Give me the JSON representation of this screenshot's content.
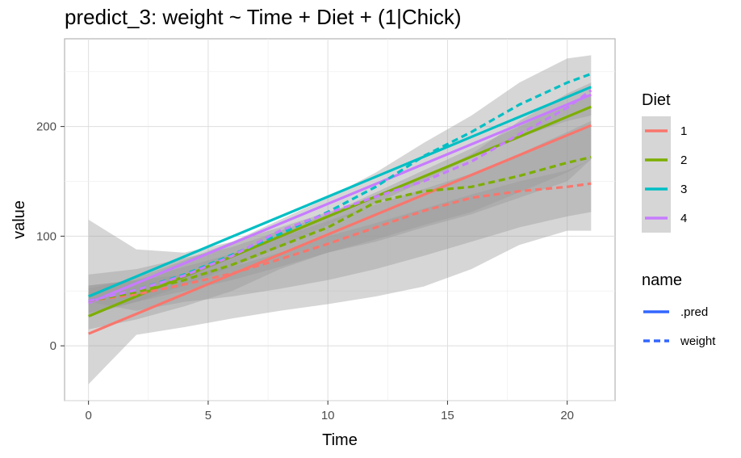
{
  "title": "predict_3: weight ~ Time + Diet + (1|Chick)",
  "chart_data": {
    "type": "line",
    "xlabel": "Time",
    "ylabel": "value",
    "xlim": [
      -1,
      22
    ],
    "ylim": [
      -50,
      280
    ],
    "x_ticks": [
      0,
      5,
      10,
      15,
      20
    ],
    "y_ticks": [
      0,
      100,
      200
    ],
    "grid": true,
    "x": [
      0,
      21
    ],
    "series": [
      {
        "diet": "1",
        "name": ".pred",
        "x": [
          0,
          21
        ],
        "values": [
          11,
          201
        ]
      },
      {
        "diet": "2",
        "name": ".pred",
        "x": [
          0,
          21
        ],
        "values": [
          27,
          218
        ]
      },
      {
        "diet": "3",
        "name": ".pred",
        "x": [
          0,
          21
        ],
        "values": [
          45,
          236
        ]
      },
      {
        "diet": "4",
        "name": ".pred",
        "x": [
          0,
          21
        ],
        "values": [
          39,
          229
        ]
      },
      {
        "diet": "1",
        "name": "weight",
        "x": [
          0,
          2,
          4,
          6,
          8,
          10,
          12,
          14,
          16,
          18,
          20,
          21
        ],
        "values": [
          41,
          47,
          56,
          66,
          79,
          93,
          108,
          123,
          135,
          141,
          145,
          148
        ]
      },
      {
        "diet": "2",
        "name": "weight",
        "x": [
          0,
          2,
          4,
          6,
          8,
          10,
          12,
          14,
          16,
          18,
          20,
          21
        ],
        "values": [
          41,
          49,
          60,
          74,
          91,
          108,
          131,
          141,
          145,
          155,
          167,
          172
        ]
      },
      {
        "diet": "3",
        "name": "weight",
        "x": [
          0,
          2,
          4,
          6,
          8,
          10,
          12,
          14,
          16,
          18,
          20,
          21
        ],
        "values": [
          41,
          51,
          65,
          83,
          102,
          122,
          145,
          173,
          195,
          220,
          240,
          248
        ]
      },
      {
        "diet": "4",
        "name": "weight",
        "x": [
          0,
          2,
          4,
          6,
          8,
          10,
          12,
          14,
          16,
          18,
          20,
          21
        ],
        "values": [
          41,
          51,
          64,
          82,
          105,
          121,
          136,
          150,
          168,
          193,
          217,
          233
        ]
      }
    ],
    "ribbons": [
      {
        "x": [
          0,
          2,
          4,
          6,
          8,
          10,
          12,
          14,
          16,
          18,
          20,
          21
        ],
        "lower": [
          -35,
          10,
          17,
          25,
          32,
          38,
          45,
          54,
          70,
          92,
          105,
          105
        ],
        "upper": [
          115,
          88,
          85,
          95,
          108,
          122,
          135,
          153,
          175,
          205,
          230,
          240
        ]
      },
      {
        "x": [
          0,
          2,
          4,
          6,
          8,
          10,
          12,
          14,
          16,
          18,
          20,
          21
        ],
        "lower": [
          15,
          24,
          36,
          50,
          70,
          85,
          95,
          108,
          120,
          135,
          150,
          170
        ],
        "upper": [
          65,
          70,
          80,
          90,
          105,
          120,
          140,
          160,
          180,
          200,
          220,
          230
        ]
      },
      {
        "x": [
          0,
          2,
          4,
          6,
          8,
          10,
          12,
          14,
          16,
          18,
          20,
          21
        ],
        "lower": [
          28,
          40,
          50,
          60,
          72,
          85,
          97,
          110,
          122,
          140,
          158,
          170
        ],
        "upper": [
          55,
          60,
          72,
          84,
          99,
          114,
          129,
          143,
          157,
          175,
          195,
          205
        ]
      },
      {
        "x": [
          0,
          2,
          4,
          6,
          8,
          10,
          12,
          14,
          16,
          18,
          20,
          21
        ],
        "lower": [
          40,
          32,
          40,
          45,
          52,
          60,
          70,
          82,
          95,
          108,
          118,
          122
        ],
        "upper": [
          55,
          60,
          65,
          72,
          85,
          100,
          112,
          125,
          138,
          150,
          160,
          170
        ]
      },
      {
        "x": [
          0,
          2,
          4,
          6,
          8,
          10,
          12,
          14,
          16,
          18,
          20,
          21
        ],
        "lower": [
          30,
          40,
          55,
          72,
          90,
          110,
          130,
          150,
          172,
          190,
          205,
          210
        ],
        "upper": [
          52,
          62,
          78,
          95,
          115,
          135,
          158,
          185,
          210,
          240,
          262,
          265
        ]
      }
    ],
    "legend_diet": {
      "title": "Diet",
      "items": [
        {
          "label": "1",
          "color": "#F8766D"
        },
        {
          "label": "2",
          "color": "#7CAE00"
        },
        {
          "label": "3",
          "color": "#00BFC4"
        },
        {
          "label": "4",
          "color": "#C77CFF"
        }
      ]
    },
    "legend_name": {
      "title": "name",
      "items": [
        {
          "label": ".pred",
          "linetype": "solid"
        },
        {
          "label": "weight",
          "linetype": "dashed"
        }
      ],
      "color": "#3366FF"
    },
    "legend_position": "right"
  }
}
